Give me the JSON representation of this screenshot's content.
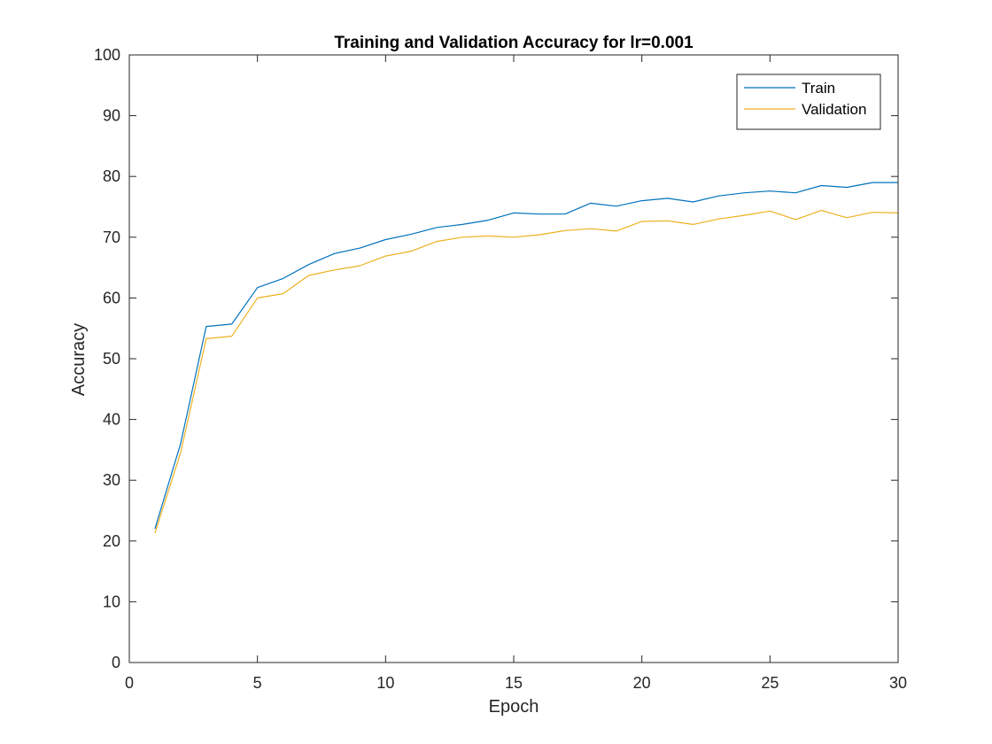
{
  "chart_data": {
    "type": "line",
    "title": "Training and Validation Accuracy for lr=0.001",
    "xlabel": "Epoch",
    "ylabel": "Accuracy",
    "xlim": [
      0,
      30
    ],
    "ylim": [
      0,
      100
    ],
    "xticks": [
      0,
      5,
      10,
      15,
      20,
      25,
      30
    ],
    "yticks": [
      0,
      10,
      20,
      30,
      40,
      50,
      60,
      70,
      80,
      90,
      100
    ],
    "xtick_labels": [
      "0",
      "5",
      "10",
      "15",
      "20",
      "25",
      "30"
    ],
    "ytick_labels": [
      "0",
      "10",
      "20",
      "30",
      "40",
      "50",
      "60",
      "70",
      "80",
      "90",
      "100"
    ],
    "grid": false,
    "legend_position": "top-right",
    "x": [
      1,
      2,
      3,
      4,
      5,
      6,
      7,
      8,
      9,
      10,
      11,
      12,
      13,
      14,
      15,
      16,
      17,
      18,
      19,
      20,
      21,
      22,
      23,
      24,
      25,
      26,
      27,
      28,
      29,
      30
    ],
    "series": [
      {
        "name": "Train",
        "color": "#0072BD",
        "values": [
          22.0,
          36.0,
          55.3,
          55.7,
          61.7,
          63.2,
          65.5,
          67.3,
          68.2,
          69.6,
          70.5,
          71.6,
          72.1,
          72.8,
          74.0,
          73.8,
          73.8,
          75.6,
          75.1,
          76.0,
          76.4,
          75.8,
          76.8,
          77.3,
          77.6,
          77.3,
          78.5,
          78.2,
          79.0,
          79.0
        ]
      },
      {
        "name": "Validation",
        "color": "#EDB120",
        "values": [
          21.3,
          34.5,
          53.3,
          53.7,
          60.0,
          60.7,
          63.7,
          64.6,
          65.3,
          66.9,
          67.7,
          69.3,
          70.0,
          70.2,
          70.0,
          70.4,
          71.1,
          71.4,
          71.0,
          72.6,
          72.7,
          72.1,
          73.0,
          73.6,
          74.3,
          72.9,
          74.4,
          73.2,
          74.1,
          74.0
        ]
      }
    ]
  }
}
